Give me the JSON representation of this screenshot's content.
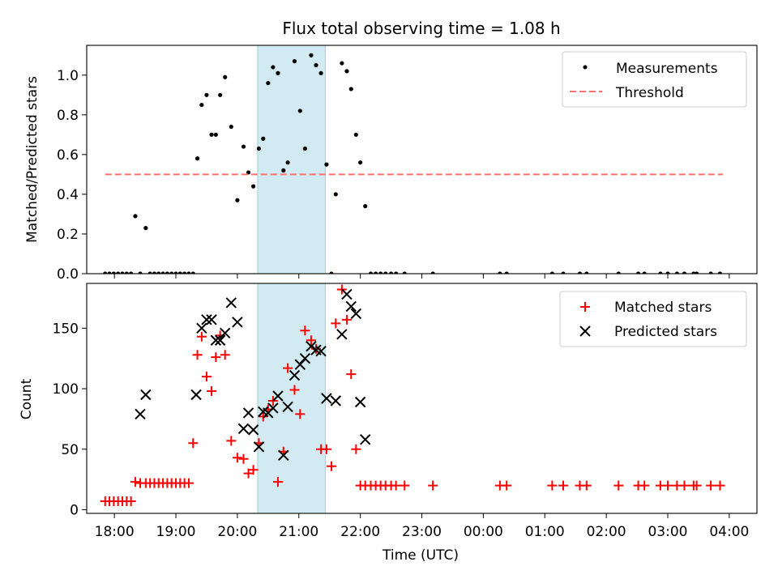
{
  "chart_data": [
    {
      "type": "scatter",
      "title": "Flux total observing time = 1.08 h",
      "xlabel": "",
      "ylabel": "Matched/Predicted stars",
      "xlim": [
        17.55,
        28.45
      ],
      "ylim": [
        0,
        1.15
      ],
      "yticks": [
        0.0,
        0.2,
        0.4,
        0.6,
        0.8,
        1.0
      ],
      "ytick_labels": [
        "0.0",
        "0.2",
        "0.4",
        "0.6",
        "0.8",
        "1.0"
      ],
      "shaded_span": [
        20.33,
        21.43
      ],
      "legend_position": "top-right",
      "series": [
        {
          "name": "Measurements",
          "kind": "scatter",
          "marker": "dot",
          "color": "#000000",
          "x": [
            17.85,
            17.92,
            17.99,
            18.06,
            18.13,
            18.2,
            18.27,
            18.34,
            18.42,
            18.51,
            18.58,
            18.65,
            18.72,
            18.79,
            18.86,
            18.93,
            19.0,
            19.07,
            19.14,
            19.21,
            19.28,
            19.35,
            19.42,
            19.5,
            19.58,
            19.65,
            19.72,
            19.8,
            19.9,
            20.0,
            20.1,
            20.18,
            20.26,
            20.35,
            20.42,
            20.5,
            20.58,
            20.66,
            20.75,
            20.82,
            20.93,
            21.02,
            21.1,
            21.2,
            21.28,
            21.36,
            21.45,
            21.53,
            21.6,
            21.7,
            21.78,
            21.85,
            21.93,
            22.0,
            22.08,
            22.17,
            22.25,
            22.33,
            22.41,
            22.5,
            22.58,
            22.72,
            23.18,
            24.27,
            24.38,
            25.12,
            25.3,
            25.57,
            25.68,
            26.2,
            26.52,
            26.62,
            26.88,
            27.0,
            27.15,
            27.27,
            27.42,
            27.47,
            27.7,
            27.85
          ],
          "y": [
            0,
            0,
            0,
            0,
            0,
            0,
            0,
            0.29,
            0,
            0.23,
            0,
            0,
            0,
            0,
            0,
            0,
            0,
            0,
            0,
            0,
            0,
            0.58,
            0.85,
            0.9,
            0.7,
            0.7,
            0.9,
            0.99,
            0.74,
            0.37,
            0.64,
            0.51,
            0.44,
            0.63,
            0.68,
            0.96,
            1.04,
            1.01,
            0.52,
            0.56,
            1.07,
            0.82,
            0.63,
            1.1,
            1.05,
            1.01,
            0.55,
            0,
            0.4,
            1.06,
            1.02,
            0.93,
            0.7,
            0.56,
            0.34,
            0,
            0,
            0,
            0,
            0,
            0,
            0,
            0,
            0,
            0,
            0,
            0,
            0,
            0,
            0,
            0,
            0,
            0,
            0,
            0,
            0,
            0,
            0,
            0,
            0
          ]
        },
        {
          "name": "Threshold",
          "kind": "line",
          "style": "dashed",
          "color": "#ff7070",
          "x": [
            17.85,
            27.9
          ],
          "y": [
            0.5,
            0.5
          ]
        }
      ]
    },
    {
      "type": "scatter",
      "title": "",
      "xlabel": "Time (UTC)",
      "ylabel": "Count",
      "xlim": [
        17.55,
        28.45
      ],
      "ylim": [
        -3,
        187
      ],
      "yticks": [
        0,
        50,
        100,
        150
      ],
      "ytick_labels": [
        "0",
        "50",
        "100",
        "150"
      ],
      "xticks": [
        18,
        19,
        20,
        21,
        22,
        23,
        24,
        25,
        26,
        27,
        28
      ],
      "xtick_labels": [
        "18:00",
        "19:00",
        "20:00",
        "21:00",
        "22:00",
        "23:00",
        "00:00",
        "01:00",
        "02:00",
        "03:00",
        "04:00"
      ],
      "shaded_span": [
        20.33,
        21.43
      ],
      "legend_position": "top-right",
      "series": [
        {
          "name": "Matched stars",
          "kind": "scatter",
          "marker": "plus",
          "color": "#ff0000",
          "x": [
            17.85,
            17.92,
            17.99,
            18.06,
            18.13,
            18.2,
            18.27,
            18.34,
            18.42,
            18.51,
            18.58,
            18.65,
            18.72,
            18.79,
            18.86,
            18.93,
            19.0,
            19.07,
            19.14,
            19.21,
            19.28,
            19.35,
            19.42,
            19.5,
            19.58,
            19.65,
            19.72,
            19.8,
            19.9,
            20.0,
            20.1,
            20.18,
            20.26,
            20.35,
            20.42,
            20.5,
            20.58,
            20.66,
            20.75,
            20.82,
            20.93,
            21.02,
            21.1,
            21.2,
            21.28,
            21.36,
            21.45,
            21.53,
            21.6,
            21.7,
            21.78,
            21.85,
            21.93,
            22.0,
            22.08,
            22.17,
            22.25,
            22.33,
            22.41,
            22.5,
            22.58,
            22.72,
            23.18,
            24.27,
            24.38,
            25.12,
            25.3,
            25.57,
            25.68,
            26.2,
            26.52,
            26.62,
            26.88,
            27.0,
            27.15,
            27.27,
            27.42,
            27.47,
            27.7,
            27.85
          ],
          "y": [
            7,
            7,
            7,
            7,
            7,
            7,
            7,
            23,
            22,
            22,
            22,
            22,
            22,
            22,
            22,
            22,
            22,
            22,
            22,
            22,
            55,
            128,
            143,
            110,
            98,
            126,
            144,
            128,
            57,
            43,
            42,
            30,
            33,
            55,
            77,
            83,
            90,
            23,
            48,
            117,
            99,
            79,
            148,
            140,
            133,
            50,
            50,
            36,
            154,
            182,
            157,
            112,
            50,
            20,
            20,
            20,
            20,
            20,
            20,
            20,
            20,
            20,
            20,
            20,
            20,
            20,
            20,
            20,
            20,
            20,
            20,
            20,
            20,
            20,
            20,
            20,
            20,
            20,
            20,
            20
          ]
        },
        {
          "name": "Predicted stars",
          "kind": "scatter",
          "marker": "x",
          "color": "#000000",
          "x": [
            18.42,
            18.51,
            19.33,
            19.42,
            19.5,
            19.58,
            19.65,
            19.72,
            19.8,
            19.9,
            20.0,
            20.1,
            20.18,
            20.26,
            20.35,
            20.42,
            20.5,
            20.58,
            20.66,
            20.75,
            20.82,
            20.93,
            21.02,
            21.1,
            21.2,
            21.28,
            21.36,
            21.45,
            21.6,
            21.7,
            21.78,
            21.85,
            21.93,
            22.0,
            22.08
          ],
          "y": [
            79,
            95,
            95,
            150,
            157,
            157,
            140,
            140,
            146,
            171,
            155,
            67,
            80,
            66,
            52,
            81,
            80,
            84,
            94,
            45,
            85,
            111,
            120,
            125,
            135,
            132,
            131,
            92,
            90,
            145,
            178,
            168,
            162,
            89,
            58
          ]
        }
      ]
    }
  ]
}
